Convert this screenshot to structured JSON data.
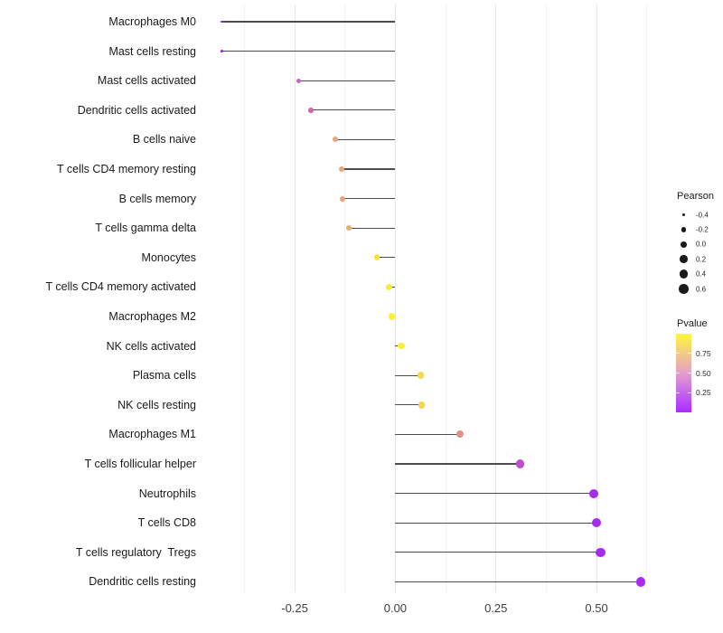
{
  "chart_data": {
    "type": "lollipop-scatter",
    "title": "",
    "xlabel": "",
    "ylabel": "",
    "grid": "vertical-only",
    "xlim": [
      -0.49,
      0.66
    ],
    "x_ticks": {
      "values": [
        -0.25,
        0.0,
        0.25,
        0.5
      ],
      "labels": [
        "-0.25",
        "0.00",
        "0.25",
        "0.50"
      ]
    },
    "x_minor_gridlines": [
      -0.375,
      -0.125,
      0.125,
      0.375,
      0.625
    ],
    "points": [
      {
        "label": "Macrophages M0",
        "pearson": -0.43,
        "color": "#8E2BD6"
      },
      {
        "label": "Mast cells resting",
        "pearson": -0.43,
        "color": "#8E2BD6"
      },
      {
        "label": "Mast cells activated",
        "pearson": -0.24,
        "color": "#C566B8"
      },
      {
        "label": "Dendritic cells activated",
        "pearson": -0.21,
        "color": "#CB69B0"
      },
      {
        "label": "B cells naive",
        "pearson": -0.15,
        "color": "#E7A483"
      },
      {
        "label": "T cells CD4 memory resting",
        "pearson": -0.133,
        "color": "#E9A87B"
      },
      {
        "label": "B cells memory",
        "pearson": -0.131,
        "color": "#E9A87B"
      },
      {
        "label": "T cells gamma delta",
        "pearson": -0.115,
        "color": "#EBAD73"
      },
      {
        "label": "Monocytes",
        "pearson": -0.046,
        "color": "#F7E53A"
      },
      {
        "label": "T cells CD4 memory activated",
        "pearson": -0.015,
        "color": "#FBEC3C"
      },
      {
        "label": "Macrophages M2",
        "pearson": -0.008,
        "color": "#FCEE3C"
      },
      {
        "label": "NK cells activated",
        "pearson": 0.015,
        "color": "#FCEE3C"
      },
      {
        "label": "Plasma cells",
        "pearson": 0.063,
        "color": "#F3D848"
      },
      {
        "label": "NK cells resting",
        "pearson": 0.065,
        "color": "#F3D848"
      },
      {
        "label": "Macrophages M1",
        "pearson": 0.16,
        "color": "#DE9083"
      },
      {
        "label": "T cells follicular helper",
        "pearson": 0.31,
        "color": "#BE4BD1"
      },
      {
        "label": "Neutrophils",
        "pearson": 0.494,
        "color": "#A52BEF"
      },
      {
        "label": "T cells CD8",
        "pearson": 0.499,
        "color": "#A52BEF"
      },
      {
        "label": "T cells regulatory  Tregs",
        "pearson": 0.51,
        "color": "#A62BEF"
      },
      {
        "label": "Dendritic cells resting",
        "pearson": 0.61,
        "color": "#A92BF5"
      }
    ],
    "legend_pearson": {
      "title": "Pearson",
      "entries": [
        {
          "label": "-0.4",
          "value": -0.4
        },
        {
          "label": "-0.2",
          "value": -0.2
        },
        {
          "label": "0.0",
          "value": 0.0
        },
        {
          "label": "0.2",
          "value": 0.2
        },
        {
          "label": "0.4",
          "value": 0.4
        },
        {
          "label": "0.6",
          "value": 0.6
        }
      ],
      "dot_color": "#1a1a1a"
    },
    "legend_pvalue": {
      "title": "Pvalue",
      "tick_labels": [
        "0.75",
        "0.50",
        "0.25"
      ],
      "tick_values": [
        0.75,
        0.5,
        0.25
      ],
      "range": [
        0,
        1
      ],
      "gradient_top_to_bottom": [
        "#FDF53C",
        "#F2CC85",
        "#E69FC6",
        "#C466EE",
        "#AA2BFE"
      ]
    },
    "segment_color": "#4d4d4d"
  }
}
